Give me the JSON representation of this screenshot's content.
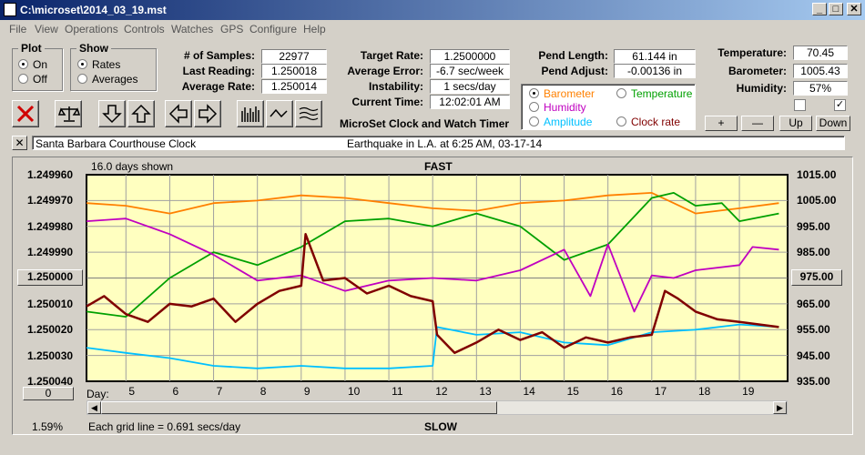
{
  "window": {
    "title": "C:\\microset\\2014_03_19.mst"
  },
  "menu": [
    "File",
    "View",
    "Operations",
    "Controls",
    "Watches",
    "GPS",
    "Configure",
    "Help"
  ],
  "plot_group": {
    "title": "Plot",
    "on": "On",
    "off": "Off"
  },
  "show_group": {
    "title": "Show",
    "rates": "Rates",
    "averages": "Averages"
  },
  "stats": {
    "samples_label": "# of Samples:",
    "samples": "22977",
    "last_label": "Last Reading:",
    "last": "1.250018",
    "avg_label": "Average Rate:",
    "avg": "1.250014",
    "target_label": "Target Rate:",
    "target": "1.2500000",
    "error_label": "Average Error:",
    "error": "-6.7 sec/week",
    "instab_label": "Instability:",
    "instab": "1 secs/day",
    "time_label": "Current Time:",
    "time": "12:02:01 AM",
    "pend_len_label": "Pend Length:",
    "pend_len": "61.144 in",
    "pend_adj_label": "Pend Adjust:",
    "pend_adj": "-0.00136 in",
    "temp_label": "Temperature:",
    "temp": "70.45",
    "baro_label": "Barometer:",
    "baro": "1005.43",
    "hum_label": "Humidity:",
    "hum": "57%"
  },
  "subtitle": "MicroSet Clock and Watch Timer",
  "aux_options": [
    {
      "label": "Barometer",
      "color": "#ff8000"
    },
    {
      "label": "Temperature",
      "color": "#00a000"
    },
    {
      "label": "Humidity",
      "color": "#c000c0"
    },
    {
      "label": "Amplitude",
      "color": "#00c0ff"
    },
    {
      "label": "Clock rate",
      "color": "#800000"
    }
  ],
  "scale_buttons": {
    "plus": "+",
    "minus": "—",
    "up": "Up",
    "down": "Down"
  },
  "description": {
    "close": "✕",
    "clock": "Santa Barbara Courthouse Clock",
    "note": "Earthquake in L.A. at 6:25 AM, 03-17-14"
  },
  "graph": {
    "days_shown": "16.0 days shown",
    "fast": "FAST",
    "slow": "SLOW",
    "grid_note": "Each grid line = 0.691 secs/day",
    "percent": "1.59%",
    "center_left": "1.250000",
    "center_right": "975.00",
    "zero_btn": "0",
    "day_label": "Day:"
  },
  "chart_data": {
    "type": "line",
    "title": "",
    "xlabel": "Day",
    "x_ticks": [
      "5",
      "6",
      "7",
      "8",
      "9",
      "10",
      "11",
      "12",
      "13",
      "14",
      "15",
      "16",
      "17",
      "18",
      "19"
    ],
    "xlim": [
      4.1,
      20.1
    ],
    "y_left_ticks": [
      "1.249960",
      "1.249970",
      "1.249980",
      "1.249990",
      "",
      "1.250010",
      "1.250020",
      "1.250030",
      "1.250040"
    ],
    "ylim_left": [
      1.24996,
      1.25004
    ],
    "y_right_ticks": [
      "1015.00",
      "1005.00",
      "995.00",
      "985.00",
      "",
      "965.00",
      "955.00",
      "945.00",
      "935.00"
    ],
    "ylim_right": [
      935,
      1015
    ],
    "grid": true,
    "series": [
      {
        "name": "Barometer",
        "color": "#ff8000",
        "x": [
          4.1,
          5,
          6,
          7,
          8,
          9,
          10,
          11,
          12,
          13,
          14,
          15,
          16,
          17,
          17.5,
          18,
          19,
          19.9
        ],
        "y": [
          1004,
          1003,
          1000,
          1004,
          1005,
          1007,
          1006,
          1004,
          1002,
          1001,
          1004,
          1005,
          1007,
          1008,
          1004,
          1000,
          1002,
          1004
        ]
      },
      {
        "name": "Temperature",
        "color": "#00a000",
        "x": [
          4.1,
          5,
          6,
          7,
          8,
          9,
          10,
          11,
          12,
          13,
          14,
          15,
          16,
          17,
          17.5,
          18,
          18.6,
          19,
          19.9
        ],
        "y": [
          962,
          960,
          975,
          985,
          980,
          987,
          997,
          998,
          995,
          1000,
          995,
          982,
          988,
          1006,
          1008,
          1003,
          1004,
          997,
          1000
        ]
      },
      {
        "name": "Humidity",
        "color": "#c000c0",
        "x": [
          4.1,
          5,
          6,
          7,
          8,
          9,
          10,
          11,
          12,
          13,
          14,
          15,
          15.6,
          16,
          16.6,
          17,
          17.5,
          18,
          19,
          19.3,
          19.9
        ],
        "y": [
          997,
          998,
          992,
          984,
          974,
          976,
          970,
          974,
          975,
          974,
          978,
          986,
          968,
          988,
          962,
          976,
          975,
          978,
          980,
          987,
          986
        ]
      },
      {
        "name": "Amplitude",
        "color": "#00c0ff",
        "x": [
          4.1,
          5,
          6,
          7,
          8,
          9,
          10,
          11,
          12,
          12.1,
          13,
          14,
          15,
          16,
          17,
          18,
          19,
          19.9
        ],
        "y": [
          948,
          946,
          944,
          941,
          940,
          941,
          940,
          940,
          941,
          956,
          953,
          954,
          950,
          949,
          954,
          955,
          957,
          956
        ]
      },
      {
        "name": "Clock rate",
        "color": "#800000",
        "x": [
          4.1,
          4.5,
          5,
          5.5,
          6,
          6.5,
          7,
          7.5,
          8,
          8.5,
          9,
          9.1,
          9.5,
          10,
          10.5,
          11,
          11.5,
          12,
          12.1,
          12.5,
          13,
          13.5,
          14,
          14.5,
          15,
          15.5,
          16,
          16.5,
          17,
          17.3,
          17.6,
          18,
          18.5,
          19,
          19.9
        ],
        "y": [
          964,
          968,
          961,
          958,
          965,
          964,
          967,
          958,
          965,
          970,
          972,
          992,
          974,
          975,
          969,
          972,
          968,
          966,
          953,
          946,
          950,
          955,
          951,
          954,
          948,
          952,
          950,
          952,
          953,
          970,
          967,
          962,
          959,
          958,
          956
        ]
      }
    ]
  }
}
